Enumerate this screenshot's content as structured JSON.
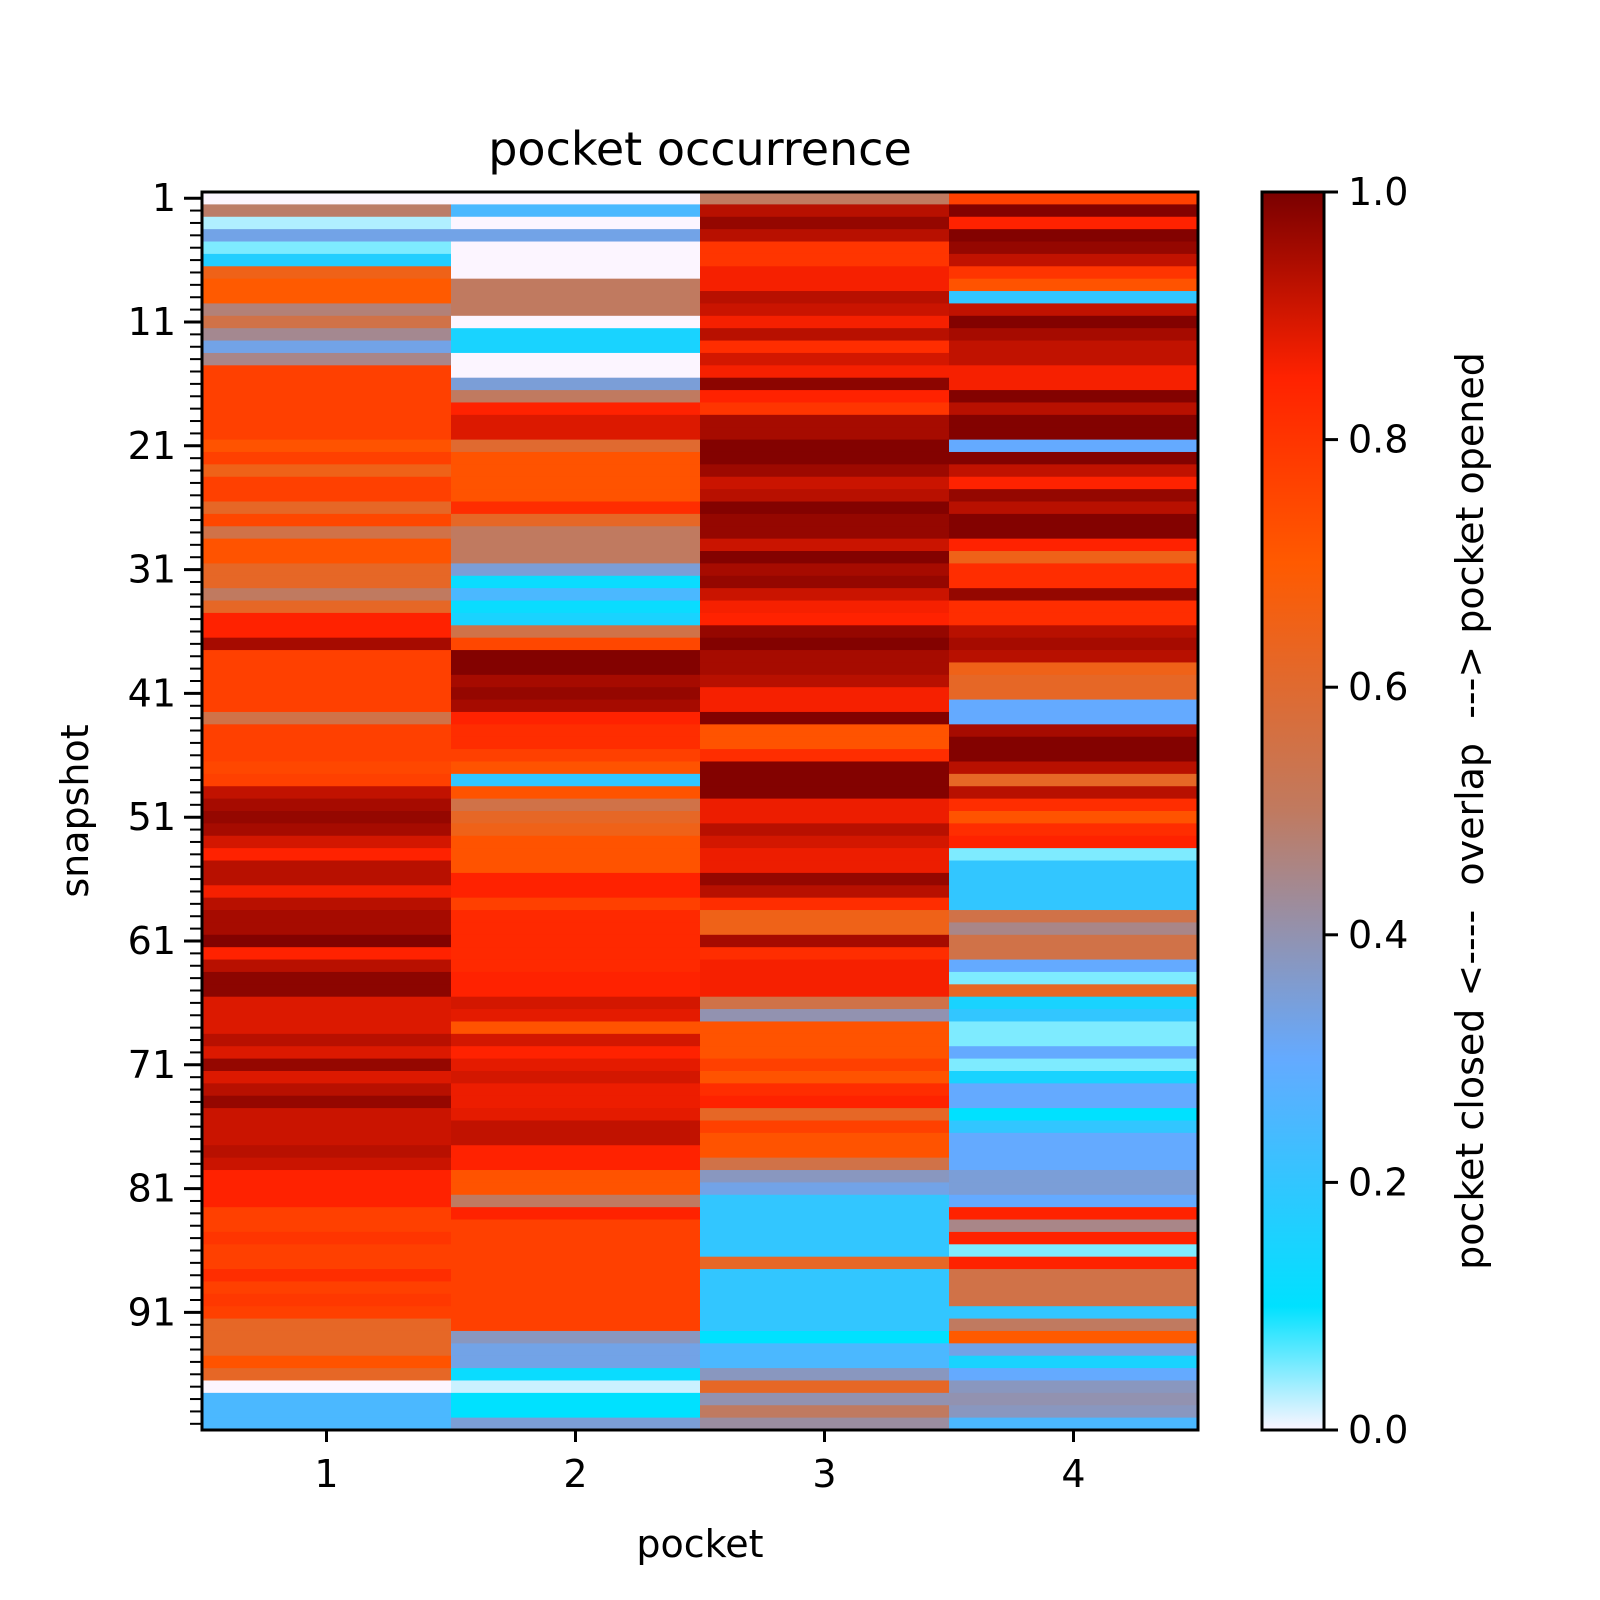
{
  "chart_data": {
    "type": "heatmap",
    "title": "pocket occurrence",
    "xlabel": "pocket",
    "ylabel": "snapshot",
    "x_categories": [
      "1",
      "2",
      "3",
      "4"
    ],
    "y_range": [
      1,
      100
    ],
    "y_tick_labels": [
      "1",
      "11",
      "21",
      "31",
      "41",
      "51",
      "61",
      "71",
      "81",
      "91"
    ],
    "colorbar": {
      "label": "pocket closed <----  overlap  ---> pocket opened",
      "range": [
        0,
        1
      ],
      "tick_labels": [
        "0.0",
        "0.2",
        "0.4",
        "0.6",
        "0.8",
        "1.0"
      ],
      "colors": [
        "#fcf5ff",
        "#00e1ff",
        "#64aaff",
        "#c07a60",
        "#ff5a00",
        "#ff2200",
        "#7a0000"
      ]
    },
    "series": [
      {
        "name": "1",
        "values": [
          0.0,
          0.49,
          0.03,
          0.33,
          0.05,
          0.17,
          0.65,
          0.7,
          0.7,
          0.47,
          0.55,
          0.44,
          0.33,
          0.45,
          0.77,
          0.77,
          0.77,
          0.77,
          0.77,
          0.77,
          0.72,
          0.77,
          0.65,
          0.77,
          0.77,
          0.62,
          0.75,
          0.55,
          0.72,
          0.72,
          0.62,
          0.62,
          0.5,
          0.62,
          0.85,
          0.85,
          0.95,
          0.77,
          0.77,
          0.77,
          0.77,
          0.77,
          0.55,
          0.77,
          0.77,
          0.77,
          0.75,
          0.77,
          0.92,
          0.95,
          0.97,
          0.95,
          0.9,
          0.85,
          0.93,
          0.93,
          0.86,
          0.93,
          0.95,
          0.95,
          0.99,
          0.85,
          0.93,
          0.98,
          0.98,
          0.89,
          0.89,
          0.89,
          0.93,
          0.89,
          0.97,
          0.89,
          0.93,
          0.97,
          0.91,
          0.91,
          0.91,
          0.93,
          0.91,
          0.85,
          0.85,
          0.85,
          0.77,
          0.77,
          0.8,
          0.77,
          0.77,
          0.82,
          0.77,
          0.79,
          0.77,
          0.62,
          0.62,
          0.62,
          0.72,
          0.62,
          0.0,
          0.25,
          0.25,
          0.25
        ]
      },
      {
        "name": "2",
        "values": [
          0.0,
          0.25,
          0.0,
          0.33,
          0.0,
          0.0,
          0.0,
          0.5,
          0.5,
          0.5,
          0.0,
          0.15,
          0.15,
          0.0,
          0.0,
          0.35,
          0.5,
          0.85,
          0.89,
          0.89,
          0.6,
          0.72,
          0.72,
          0.72,
          0.72,
          0.82,
          0.62,
          0.5,
          0.5,
          0.5,
          0.35,
          0.12,
          0.25,
          0.12,
          0.15,
          0.55,
          0.75,
          0.99,
          0.99,
          0.95,
          0.97,
          0.95,
          0.85,
          0.82,
          0.82,
          0.77,
          0.72,
          0.2,
          0.72,
          0.55,
          0.62,
          0.65,
          0.72,
          0.72,
          0.72,
          0.85,
          0.85,
          0.77,
          0.83,
          0.83,
          0.83,
          0.83,
          0.83,
          0.85,
          0.85,
          0.9,
          0.88,
          0.72,
          0.9,
          0.85,
          0.88,
          0.9,
          0.87,
          0.87,
          0.88,
          0.92,
          0.92,
          0.85,
          0.85,
          0.72,
          0.72,
          0.5,
          0.85,
          0.77,
          0.77,
          0.77,
          0.77,
          0.77,
          0.77,
          0.77,
          0.77,
          0.77,
          0.38,
          0.33,
          0.33,
          0.12,
          0.02,
          0.1,
          0.1,
          0.35
        ]
      },
      {
        "name": "3",
        "values": [
          0.5,
          0.93,
          0.97,
          0.93,
          0.8,
          0.8,
          0.86,
          0.86,
          0.93,
          0.91,
          0.86,
          0.93,
          0.82,
          0.9,
          0.86,
          0.98,
          0.85,
          0.8,
          0.95,
          0.95,
          0.99,
          0.99,
          0.96,
          0.91,
          0.93,
          0.99,
          0.97,
          0.97,
          0.91,
          0.99,
          0.95,
          0.97,
          0.91,
          0.86,
          0.85,
          0.97,
          0.99,
          0.95,
          0.95,
          0.93,
          0.86,
          0.86,
          0.99,
          0.72,
          0.72,
          0.82,
          0.99,
          0.99,
          0.99,
          0.87,
          0.87,
          0.93,
          0.9,
          0.87,
          0.87,
          0.97,
          0.93,
          0.82,
          0.65,
          0.65,
          0.95,
          0.82,
          0.86,
          0.86,
          0.86,
          0.55,
          0.4,
          0.72,
          0.72,
          0.72,
          0.77,
          0.72,
          0.82,
          0.85,
          0.62,
          0.77,
          0.72,
          0.72,
          0.55,
          0.38,
          0.33,
          0.2,
          0.2,
          0.2,
          0.2,
          0.2,
          0.62,
          0.2,
          0.2,
          0.2,
          0.2,
          0.2,
          0.1,
          0.25,
          0.25,
          0.38,
          0.62,
          0.4,
          0.5,
          0.42
        ]
      },
      {
        "name": "4",
        "values": [
          0.77,
          0.99,
          0.85,
          0.99,
          0.97,
          0.92,
          0.8,
          0.72,
          0.2,
          0.92,
          0.99,
          0.95,
          0.92,
          0.92,
          0.86,
          0.86,
          0.99,
          0.93,
          0.99,
          0.99,
          0.3,
          0.99,
          0.92,
          0.85,
          0.97,
          0.93,
          0.99,
          0.99,
          0.85,
          0.65,
          0.82,
          0.82,
          0.97,
          0.82,
          0.82,
          0.93,
          0.95,
          0.93,
          0.65,
          0.62,
          0.62,
          0.3,
          0.3,
          0.95,
          0.99,
          0.99,
          0.93,
          0.62,
          0.93,
          0.82,
          0.72,
          0.82,
          0.85,
          0.05,
          0.2,
          0.2,
          0.2,
          0.2,
          0.55,
          0.45,
          0.55,
          0.55,
          0.3,
          0.05,
          0.62,
          0.15,
          0.2,
          0.05,
          0.05,
          0.3,
          0.05,
          0.15,
          0.3,
          0.3,
          0.1,
          0.2,
          0.3,
          0.3,
          0.3,
          0.35,
          0.35,
          0.3,
          0.85,
          0.45,
          0.85,
          0.05,
          0.85,
          0.55,
          0.55,
          0.55,
          0.2,
          0.5,
          0.7,
          0.33,
          0.15,
          0.3,
          0.38,
          0.4,
          0.38,
          0.25
        ]
      }
    ]
  }
}
